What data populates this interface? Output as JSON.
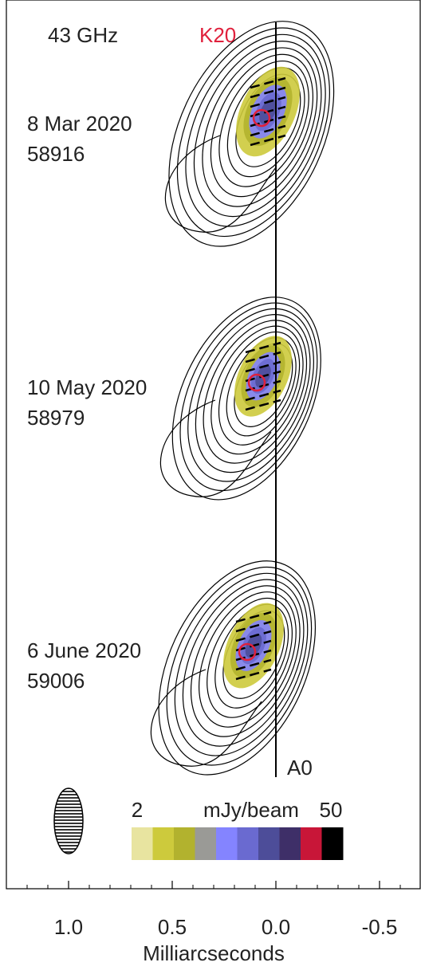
{
  "chart_data": {
    "type": "image",
    "frequency": "43 GHz",
    "component": "K20",
    "core": "A0",
    "epochs": [
      {
        "date": "8 Mar 2020",
        "mjd": "58916"
      },
      {
        "date": "10 May 2020",
        "mjd": "58979"
      },
      {
        "date": "6 June 2020",
        "mjd": "59006"
      }
    ],
    "colorbar": {
      "min": 2,
      "label": "mJy/beam",
      "max": 50,
      "colors": [
        "#e8e4a0",
        "#cdca3c",
        "#b2b22e",
        "#9a9a96",
        "#8484ff",
        "#6a6ad0",
        "#4d4d99",
        "#3e2f68",
        "#c81638",
        "#000000"
      ]
    },
    "xlabel": "Milliarcseconds",
    "xlim": [
      1.3,
      -0.7
    ],
    "xticks": [
      {
        "value": 1.0,
        "label": "1.0"
      },
      0.5,
      {
        "value": 0,
        "label": "0.0"
      },
      -0.5
    ],
    "xminorticks": [
      1.2,
      1.1,
      0.9,
      0.8,
      0.7,
      0.6,
      0.4,
      0.3,
      0.2,
      0.1,
      -0.1,
      -0.2,
      -0.3,
      -0.4,
      -0.6
    ]
  }
}
